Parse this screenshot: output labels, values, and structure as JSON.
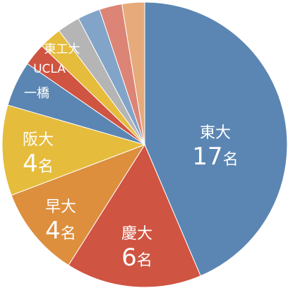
{
  "chart_data": {
    "type": "pie",
    "title": "",
    "slices": [
      {
        "label": "東大",
        "value": 17,
        "value_text": "17",
        "unit": "名",
        "color": "#5b86b3"
      },
      {
        "label": "慶大",
        "value": 6,
        "value_text": "6",
        "unit": "名",
        "color": "#cf5442"
      },
      {
        "label": "早大",
        "value": 4,
        "value_text": "4",
        "unit": "名",
        "color": "#dd8f3e"
      },
      {
        "label": "阪大",
        "value": 4,
        "value_text": "4",
        "unit": "名",
        "color": "#e6bc3c"
      },
      {
        "label": "一橋",
        "value": 2,
        "value_text": "",
        "unit": "",
        "color": "#5b86b3"
      },
      {
        "label": "UCLA",
        "value": 1,
        "value_text": "",
        "unit": "",
        "color": "#cf5442"
      },
      {
        "label": "東工大",
        "value": 1,
        "value_text": "",
        "unit": "",
        "color": "#e6bc3c"
      },
      {
        "label": "",
        "value": 1,
        "value_text": "",
        "unit": "",
        "color": "#b5b5b5"
      },
      {
        "label": "",
        "value": 1,
        "value_text": "",
        "unit": "",
        "color": "#83a4c9"
      },
      {
        "label": "",
        "value": 1,
        "value_text": "",
        "unit": "",
        "color": "#dc8476"
      },
      {
        "label": "",
        "value": 1,
        "value_text": "",
        "unit": "",
        "color": "#e7aa7a"
      }
    ]
  }
}
